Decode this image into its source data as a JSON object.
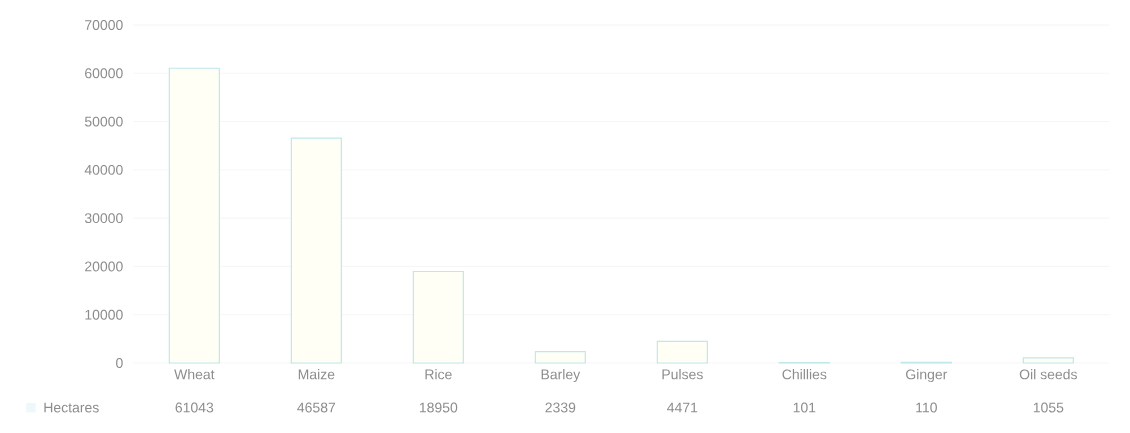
{
  "chart_data": {
    "type": "bar",
    "categories": [
      "Wheat",
      "Maize",
      "Rice",
      "Barley",
      "Pulses",
      "Chillies",
      "Ginger",
      "Oil seeds"
    ],
    "series": [
      {
        "name": "Hectares",
        "color": "#bfe8ea",
        "values": [
          61043,
          46587,
          18950,
          2339,
          4471,
          101,
          110,
          1055
        ]
      }
    ],
    "ylim": [
      0,
      70000
    ],
    "yticks": [
      0,
      10000,
      20000,
      30000,
      40000,
      50000,
      60000,
      70000
    ],
    "grid": "y",
    "legend": "bottom left",
    "data_labels": true
  }
}
